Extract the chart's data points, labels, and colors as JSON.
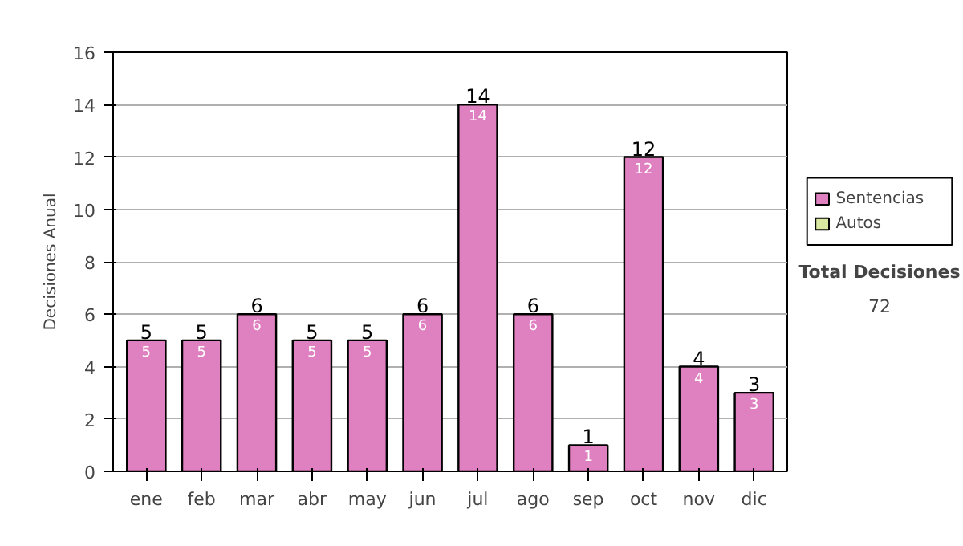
{
  "chart_data": {
    "type": "bar",
    "stacked": true,
    "ylabel": "Decisiones Anual",
    "categories": [
      "ene",
      "feb",
      "mar",
      "abr",
      "may",
      "jun",
      "jul",
      "ago",
      "sep",
      "oct",
      "nov",
      "dic"
    ],
    "series": [
      {
        "name": "Sentencias",
        "color": "#df80c0",
        "values": [
          5,
          5,
          6,
          5,
          5,
          6,
          14,
          6,
          1,
          12,
          4,
          3
        ],
        "value_labels": [
          "5",
          "5",
          "6",
          "5",
          "5",
          "6",
          "14",
          "6",
          "1",
          "12",
          "4",
          "3"
        ]
      },
      {
        "name": "Autos",
        "color": "#d9e8a0",
        "values": [
          null,
          null,
          null,
          null,
          null,
          null,
          null,
          null,
          null,
          null,
          null,
          null
        ]
      }
    ],
    "totals": [
      "5",
      "5",
      "6",
      "5",
      "5",
      "6",
      "14",
      "6",
      "1",
      "12",
      "4",
      "3"
    ],
    "ylim": [
      0,
      16
    ],
    "yticks": [
      0,
      2,
      4,
      6,
      8,
      10,
      12,
      14,
      16
    ],
    "grid": "y",
    "legend": "right",
    "annotations": [
      "Total Decisiones",
      "72"
    ]
  }
}
